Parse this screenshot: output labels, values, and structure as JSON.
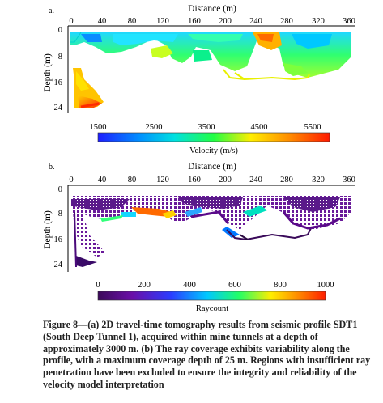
{
  "panels": [
    {
      "label": "a.",
      "x_axis_title": "Distance (m)",
      "y_axis_title": "Depth (m)",
      "x_ticks": [
        "0",
        "40",
        "80",
        "120",
        "160",
        "200",
        "240",
        "280",
        "320",
        "360"
      ],
      "y_ticks": [
        "0",
        "8",
        "16",
        "24"
      ],
      "colorbar_ticks": [
        "1500",
        "2500",
        "3500",
        "4500",
        "5500"
      ],
      "colorbar_title": "Velocity (m/s)"
    },
    {
      "label": "b.",
      "x_axis_title": "Distance (m)",
      "y_axis_title": "Depth (m)",
      "x_ticks": [
        "0",
        "40",
        "80",
        "120",
        "160",
        "200",
        "240",
        "280",
        "320",
        "360"
      ],
      "y_ticks": [
        "0",
        "8",
        "16",
        "24"
      ],
      "colorbar_ticks": [
        "0",
        "200",
        "400",
        "600",
        "800",
        "1000"
      ],
      "colorbar_title": "Raycount"
    }
  ],
  "caption": "Figure 8—(a) 2D travel-time tomography results from seismic profile SDT1 (South Deep Tunnel 1), acquired within mine tunnels at a depth of approximately 3000 m. (b) The ray coverage exhibits variability along the profile, with a maximum coverage depth of 25 m. Regions with insufficient ray penetration have been excluded to ensure the integrity and reliability of the velocity model interpretation",
  "chart_data": [
    {
      "type": "heatmap",
      "title": "",
      "xlabel": "Distance (m)",
      "ylabel": "Depth (m)",
      "xlim": [
        0,
        360
      ],
      "ylim": [
        0,
        28
      ],
      "colorbar": {
        "label": "Velocity (m/s)",
        "range": [
          1000,
          6000
        ],
        "ticks": [
          1500,
          2500,
          3500,
          4500,
          5500
        ]
      },
      "colors": {
        "low": "#1e3cff",
        "mid": "#00ff66",
        "high": "#ff1e00"
      }
    },
    {
      "type": "heatmap",
      "title": "",
      "xlabel": "Distance (m)",
      "ylabel": "Depth (m)",
      "xlim": [
        0,
        360
      ],
      "ylim": [
        0,
        28
      ],
      "colorbar": {
        "label": "Raycount",
        "range": [
          0,
          1000
        ],
        "ticks": [
          0,
          200,
          400,
          600,
          800,
          1000
        ]
      },
      "colors": {
        "low": "#5a0a8c",
        "mid": "#00c8ff",
        "high": "#ff2800"
      }
    }
  ]
}
